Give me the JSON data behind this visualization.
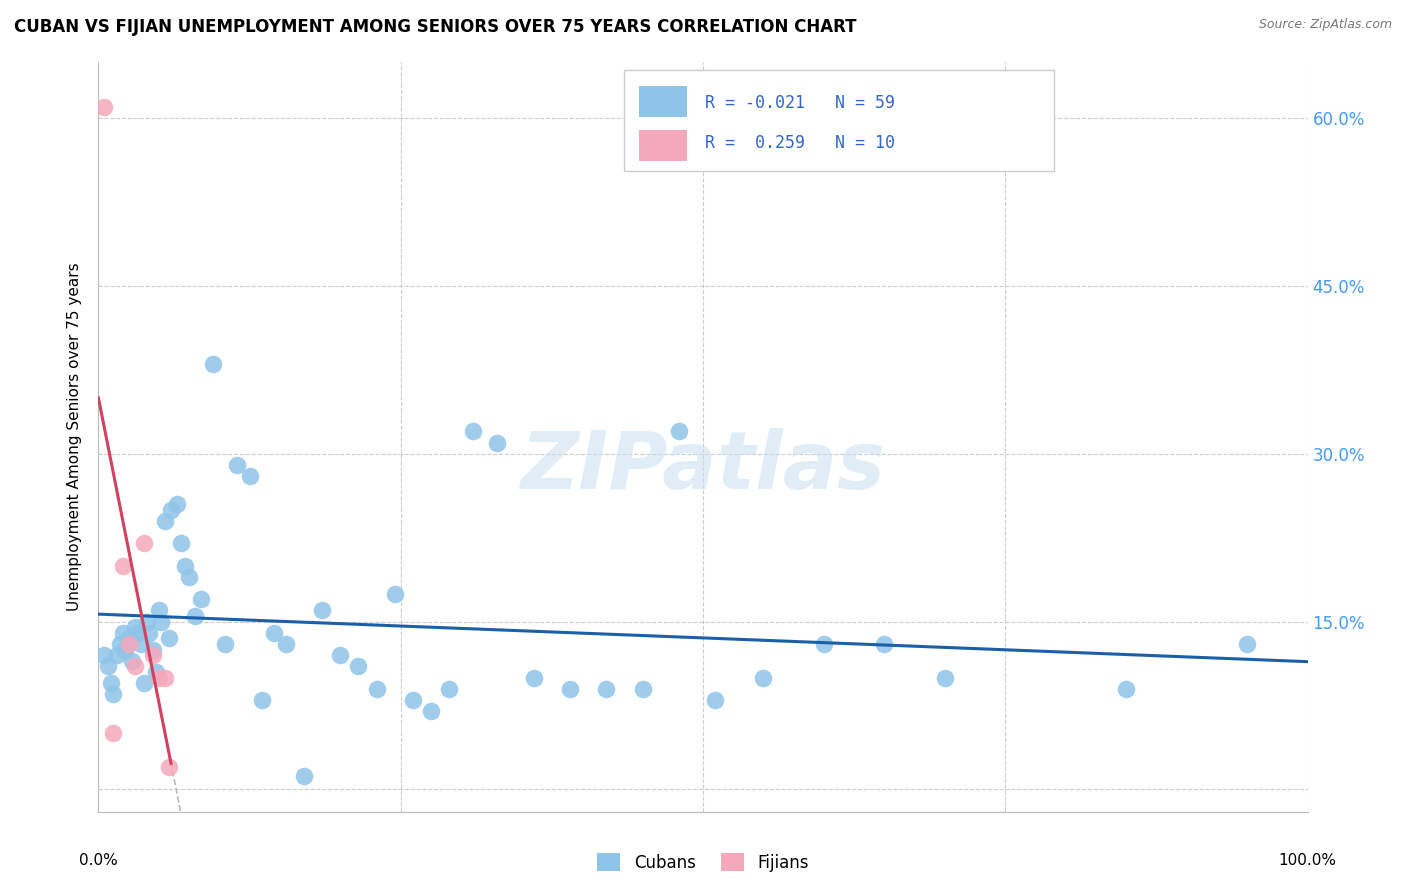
{
  "title": "CUBAN VS FIJIAN UNEMPLOYMENT AMONG SENIORS OVER 75 YEARS CORRELATION CHART",
  "source": "Source: ZipAtlas.com",
  "ylabel": "Unemployment Among Seniors over 75 years",
  "yticks": [
    0.0,
    0.15,
    0.3,
    0.45,
    0.6
  ],
  "ytick_labels": [
    "",
    "15.0%",
    "30.0%",
    "45.0%",
    "60.0%"
  ],
  "xlim": [
    0.0,
    1.0
  ],
  "ylim": [
    -0.02,
    0.65
  ],
  "legend_cubans_R": "-0.021",
  "legend_cubans_N": "59",
  "legend_fijians_R": "0.259",
  "legend_fijians_N": "10",
  "cuban_color": "#8EC4E8",
  "fijian_color": "#F5A8BB",
  "cuban_line_color": "#1A5FA8",
  "fijian_trend_solid_color": "#D44060",
  "fijian_trend_dash_color": "#BBBBBB",
  "watermark_color": "#C8DFF0",
  "cuban_x": [
    0.005,
    0.008,
    0.01,
    0.012,
    0.015,
    0.018,
    0.02,
    0.022,
    0.025,
    0.028,
    0.03,
    0.032,
    0.035,
    0.038,
    0.04,
    0.042,
    0.045,
    0.048,
    0.05,
    0.052,
    0.055,
    0.058,
    0.06,
    0.065,
    0.068,
    0.072,
    0.075,
    0.08,
    0.085,
    0.095,
    0.105,
    0.115,
    0.125,
    0.135,
    0.145,
    0.155,
    0.17,
    0.185,
    0.2,
    0.215,
    0.23,
    0.245,
    0.26,
    0.275,
    0.29,
    0.31,
    0.33,
    0.36,
    0.39,
    0.42,
    0.45,
    0.48,
    0.51,
    0.55,
    0.6,
    0.65,
    0.7,
    0.85,
    0.95
  ],
  "cuban_y": [
    0.12,
    0.11,
    0.095,
    0.085,
    0.12,
    0.13,
    0.14,
    0.125,
    0.135,
    0.115,
    0.145,
    0.14,
    0.13,
    0.095,
    0.15,
    0.14,
    0.125,
    0.105,
    0.16,
    0.15,
    0.24,
    0.135,
    0.25,
    0.255,
    0.22,
    0.2,
    0.19,
    0.155,
    0.17,
    0.38,
    0.13,
    0.29,
    0.28,
    0.08,
    0.14,
    0.13,
    0.012,
    0.16,
    0.12,
    0.11,
    0.09,
    0.175,
    0.08,
    0.07,
    0.09,
    0.32,
    0.31,
    0.1,
    0.09,
    0.09,
    0.09,
    0.32,
    0.08,
    0.1,
    0.13,
    0.13,
    0.1,
    0.09,
    0.13
  ],
  "fijian_x": [
    0.005,
    0.012,
    0.02,
    0.025,
    0.03,
    0.038,
    0.045,
    0.05,
    0.055,
    0.058
  ],
  "fijian_y": [
    0.61,
    0.05,
    0.2,
    0.13,
    0.11,
    0.22,
    0.12,
    0.1,
    0.1,
    0.02
  ]
}
